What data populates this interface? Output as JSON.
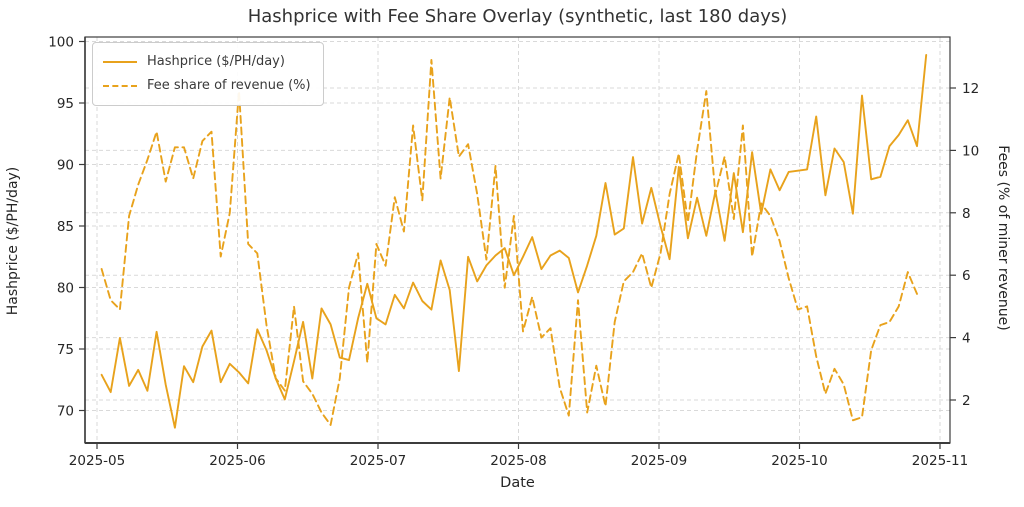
{
  "chart_data": {
    "type": "line",
    "title": "Hashprice with Fee Share Overlay (synthetic, last 180 days)",
    "xlabel": "Date",
    "ylabel_left": "Hashprice ($/PH/day)",
    "ylabel_right": "Fees (% of miner revenue)",
    "line_color": "#e8a21c",
    "x_start_date": "2025-05-02",
    "x_step_days": 2,
    "axes": {
      "x_ticks": [
        "2025-05",
        "2025-06",
        "2025-07",
        "2025-08",
        "2025-09",
        "2025-10",
        "2025-11"
      ],
      "left_ticks": [
        100,
        95,
        90,
        85,
        80,
        75,
        70
      ],
      "right_ticks": [
        12,
        10,
        8,
        6,
        4,
        2
      ],
      "left_range": [
        70,
        100
      ],
      "right_range": [
        2,
        12
      ],
      "grid": "dashed, both axes"
    },
    "legend_position": "upper left",
    "series": [
      {
        "name": "Hashprice ($/PH/day)",
        "axis": "left",
        "line_style": "solid",
        "values": [
          72.9,
          71.5,
          75.9,
          72.0,
          73.3,
          71.6,
          76.4,
          72.1,
          68.6,
          73.6,
          72.3,
          75.2,
          76.5,
          72.3,
          73.8,
          73.1,
          72.2,
          76.6,
          74.9,
          72.6,
          70.9,
          74.0,
          77.2,
          72.6,
          78.3,
          77.0,
          74.3,
          74.1,
          77.5,
          80.3,
          77.5,
          77.0,
          79.4,
          78.3,
          80.4,
          78.9,
          78.2,
          82.2,
          79.8,
          73.2,
          82.5,
          80.5,
          81.8,
          82.6,
          83.2,
          81.0,
          82.5,
          84.1,
          81.5,
          82.6,
          83.0,
          82.4,
          79.6,
          81.8,
          84.2,
          88.5,
          84.3,
          84.8,
          90.6,
          85.2,
          88.1,
          85.0,
          82.3,
          89.8,
          84.0,
          87.3,
          84.2,
          87.8,
          83.8,
          89.3,
          84.5,
          91.0,
          86.0,
          89.6,
          87.9,
          89.4,
          89.5,
          89.6,
          93.9,
          87.5,
          91.3,
          90.2,
          86.0,
          95.6,
          88.8,
          89.0,
          91.5,
          92.4,
          93.6,
          91.5,
          98.9
        ]
      },
      {
        "name": "Fee share of revenue (%)",
        "axis": "right",
        "line_style": "dashed",
        "values": [
          6.2,
          5.2,
          4.9,
          7.9,
          8.9,
          9.7,
          10.6,
          9.0,
          10.1,
          10.1,
          9.1,
          10.3,
          10.6,
          6.6,
          8.0,
          11.9,
          7.0,
          6.7,
          4.4,
          2.7,
          2.3,
          5.0,
          2.6,
          2.2,
          1.6,
          1.2,
          2.7,
          5.6,
          6.7,
          3.2,
          7.0,
          6.3,
          8.5,
          7.4,
          10.8,
          8.4,
          12.9,
          9.1,
          11.7,
          9.8,
          10.2,
          8.6,
          6.5,
          9.5,
          5.6,
          7.9,
          4.2,
          5.3,
          4.0,
          4.3,
          2.4,
          1.5,
          5.2,
          1.6,
          3.1,
          1.8,
          4.5,
          5.8,
          6.1,
          6.7,
          5.6,
          6.7,
          8.6,
          9.9,
          7.7,
          10.0,
          11.9,
          8.6,
          9.8,
          7.8,
          10.8,
          6.6,
          8.3,
          7.9,
          7.1,
          5.9,
          4.9,
          5.0,
          3.4,
          2.2,
          3.0,
          2.5,
          1.35,
          1.45,
          3.6,
          4.4,
          4.5,
          5.0,
          6.1,
          5.4,
          null
        ]
      }
    ]
  }
}
